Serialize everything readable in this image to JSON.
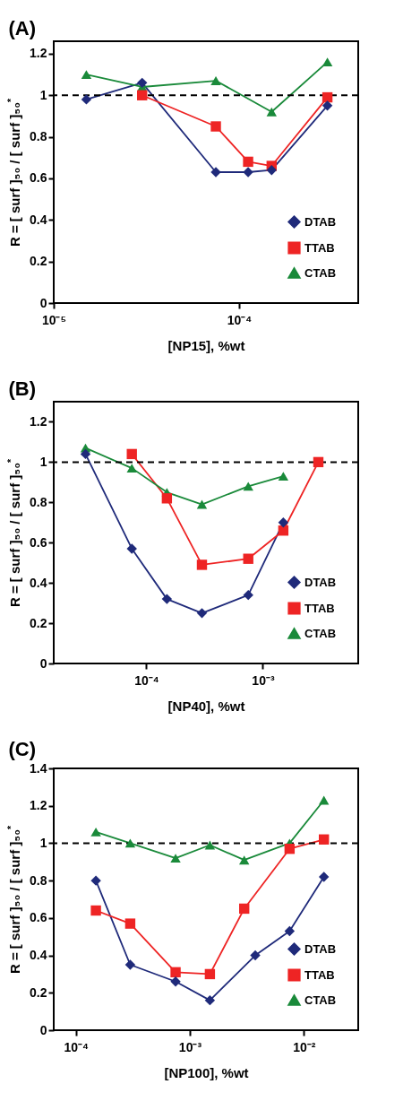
{
  "chart_data": [
    {
      "type": "line",
      "title": "(A)",
      "xlabel": "[NP15], %wt",
      "ylabel": "R = [ surf ]₅₀ / [ surf ]₅₀$^{*}$",
      "log": "x",
      "grid": false,
      "legend": "bottom right",
      "line_style": "solid",
      "xlim": [
        1e-05,
        0.00044
      ],
      "xticks": [
        {
          "value": 1e-05,
          "label": "10⁻⁵"
        },
        {
          "value": 0.0001,
          "label": "10⁻⁴"
        }
      ],
      "ylim": [
        0,
        1.26
      ],
      "yticks": [
        0,
        0.2,
        0.4,
        0.6,
        0.8,
        1,
        1.2
      ],
      "ref_lines": [
        {
          "axis": "y",
          "value": 1,
          "color": "#000000",
          "line_style": "dashed"
        }
      ],
      "series": [
        {
          "name": "DTAB",
          "color": "#1f2a7a",
          "marker": "diamond",
          "x": [
            1.5e-05,
            3e-05,
            7.5e-05,
            0.000112,
            0.00015,
            0.0003
          ],
          "values": [
            0.98,
            1.06,
            0.63,
            0.63,
            0.64,
            0.95
          ]
        },
        {
          "name": "TTAB",
          "color": "#ee2424",
          "marker": "square",
          "x": [
            3e-05,
            7.5e-05,
            0.000112,
            0.00015,
            0.0003
          ],
          "values": [
            1.0,
            0.85,
            0.68,
            0.66,
            0.99
          ]
        },
        {
          "name": "CTAB",
          "color": "#1a8a3a",
          "marker": "triangle",
          "x": [
            1.5e-05,
            3e-05,
            7.5e-05,
            0.00015,
            0.0003
          ],
          "values": [
            1.1,
            1.04,
            1.07,
            0.92,
            1.16
          ]
        }
      ]
    },
    {
      "type": "line",
      "title": "(B)",
      "xlabel": "[NP40], %wt",
      "ylabel": "R = [ surf ]₅₀ / [ surf ]₅₀$^{*}$",
      "log": "x",
      "grid": false,
      "legend": "bottom right",
      "line_style": "solid",
      "xlim": [
        1.6e-05,
        0.0066
      ],
      "xticks": [
        {
          "value": 0.0001,
          "label": "10⁻⁴"
        },
        {
          "value": 0.001,
          "label": "10⁻³"
        }
      ],
      "ylim": [
        0,
        1.3
      ],
      "yticks": [
        0,
        0.2,
        0.4,
        0.6,
        0.8,
        1,
        1.2
      ],
      "ref_lines": [
        {
          "axis": "y",
          "value": 1,
          "color": "#000000",
          "line_style": "dashed"
        }
      ],
      "series": [
        {
          "name": "DTAB",
          "color": "#1f2a7a",
          "marker": "diamond",
          "x": [
            3e-05,
            7.5e-05,
            0.00015,
            0.0003,
            0.00075,
            0.0015
          ],
          "values": [
            1.04,
            0.57,
            0.32,
            0.25,
            0.34,
            0.7
          ]
        },
        {
          "name": "TTAB",
          "color": "#ee2424",
          "marker": "square",
          "x": [
            7.5e-05,
            0.00015,
            0.0003,
            0.00075,
            0.0015,
            0.003
          ],
          "values": [
            1.04,
            0.82,
            0.49,
            0.52,
            0.66,
            1.0
          ]
        },
        {
          "name": "CTAB",
          "color": "#1a8a3a",
          "marker": "triangle",
          "x": [
            3e-05,
            7.5e-05,
            0.00015,
            0.0003,
            0.00075,
            0.0015
          ],
          "values": [
            1.07,
            0.97,
            0.85,
            0.79,
            0.88,
            0.93
          ]
        }
      ]
    },
    {
      "type": "line",
      "title": "(C)",
      "xlabel": "[NP100], %wt",
      "ylabel": "R = [ surf ]₅₀ / [ surf ]₅₀$^{*}$",
      "log": "x",
      "grid": false,
      "legend": "bottom right",
      "line_style": "solid",
      "xlim": [
        6.4e-05,
        0.03
      ],
      "xticks": [
        {
          "value": 0.0001,
          "label": "10⁻⁴"
        },
        {
          "value": 0.001,
          "label": "10⁻³"
        },
        {
          "value": 0.01,
          "label": "10⁻²"
        }
      ],
      "ylim": [
        0,
        1.4
      ],
      "yticks": [
        0,
        0.2,
        0.4,
        0.6,
        0.8,
        1,
        1.2,
        1.4
      ],
      "ref_lines": [
        {
          "axis": "y",
          "value": 1,
          "color": "#000000",
          "line_style": "dashed"
        }
      ],
      "series": [
        {
          "name": "DTAB",
          "color": "#1f2a7a",
          "marker": "diamond",
          "x": [
            0.00015,
            0.0003,
            0.00075,
            0.0015,
            0.00375,
            0.0075,
            0.015
          ],
          "values": [
            0.8,
            0.35,
            0.26,
            0.16,
            0.4,
            0.53,
            0.82
          ]
        },
        {
          "name": "TTAB",
          "color": "#ee2424",
          "marker": "square",
          "x": [
            0.00015,
            0.0003,
            0.00075,
            0.0015,
            0.003,
            0.0075,
            0.015
          ],
          "values": [
            0.64,
            0.57,
            0.31,
            0.3,
            0.65,
            0.97,
            1.02
          ]
        },
        {
          "name": "CTAB",
          "color": "#1a8a3a",
          "marker": "triangle",
          "x": [
            0.00015,
            0.0003,
            0.00075,
            0.0015,
            0.003,
            0.0075,
            0.015
          ],
          "values": [
            1.06,
            1.0,
            0.92,
            0.99,
            0.91,
            1.0,
            1.23
          ]
        }
      ]
    }
  ]
}
